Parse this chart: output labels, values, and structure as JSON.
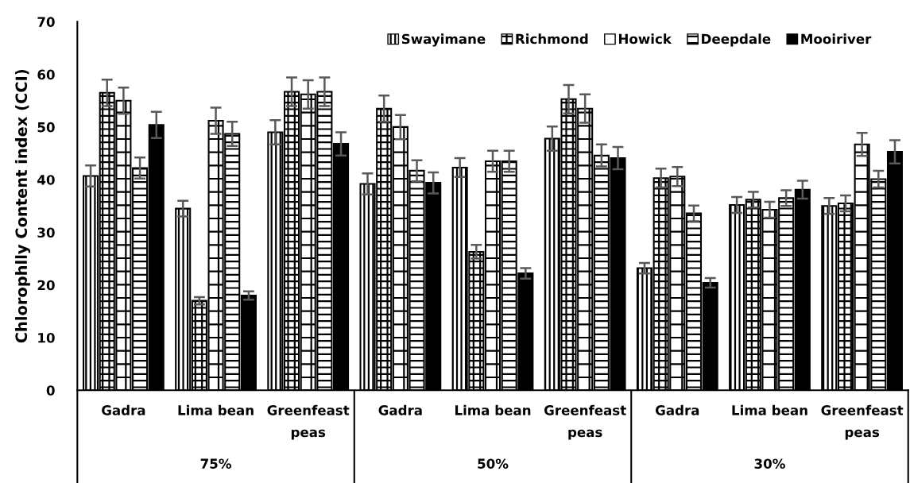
{
  "chart_data": {
    "type": "bar",
    "ylabel": "Chlorophlly Content index (CCI)",
    "categories": [
      "Gadra",
      "Lima bean",
      "Greenfeast peas",
      "Gadra",
      "Lima bean",
      "Greenfeast peas",
      "Gadra",
      "Lima bean",
      "Greenfeast peas"
    ],
    "annotations": [
      "75%",
      "50%",
      "30%"
    ],
    "ylim": [
      0,
      70
    ],
    "yticks": [
      0,
      10,
      20,
      30,
      40,
      50,
      60,
      70
    ],
    "grid": false,
    "legend": "top right",
    "series": [
      {
        "name": "Swayimane",
        "color": "#000000",
        "values": [
          40.7,
          34.5,
          49.0,
          39.2,
          42.3,
          47.8,
          23.2,
          35.2,
          35.0
        ],
        "errors": [
          2.0,
          1.5,
          2.3,
          2.0,
          1.8,
          2.3,
          1.0,
          1.5,
          1.5
        ]
      },
      {
        "name": "Richmond",
        "color": "#000000",
        "values": [
          56.5,
          17.0,
          56.7,
          53.5,
          26.3,
          55.3,
          40.3,
          36.2,
          35.5
        ],
        "errors": [
          2.5,
          0.7,
          2.7,
          2.5,
          1.3,
          2.7,
          1.8,
          1.5,
          1.5
        ]
      },
      {
        "name": "Howick",
        "color": "#000000",
        "values": [
          55.0,
          51.2,
          56.2,
          50.0,
          43.5,
          53.5,
          40.6,
          34.3,
          46.7
        ],
        "errors": [
          2.5,
          2.5,
          2.7,
          2.3,
          2.0,
          2.7,
          1.8,
          1.5,
          2.2
        ]
      },
      {
        "name": "Deepdale",
        "color": "#000000",
        "values": [
          42.2,
          48.7,
          56.7,
          41.7,
          43.5,
          44.6,
          33.6,
          36.5,
          40.1
        ],
        "errors": [
          2.0,
          2.3,
          2.7,
          2.0,
          2.0,
          2.1,
          1.5,
          1.5,
          1.6
        ]
      },
      {
        "name": "Mooiriver",
        "color": "#000000",
        "values": [
          50.4,
          18.0,
          46.8,
          39.4,
          22.2,
          44.1,
          20.4,
          38.1,
          45.3
        ],
        "errors": [
          2.5,
          0.8,
          2.2,
          2.0,
          1.0,
          2.1,
          0.9,
          1.7,
          2.2
        ]
      }
    ]
  }
}
